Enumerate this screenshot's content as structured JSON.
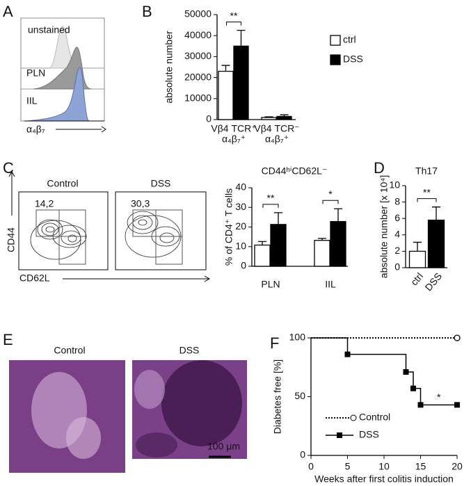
{
  "panels": {
    "A": {
      "letter": "A",
      "labels": [
        "unstained",
        "PLN",
        "IIL"
      ],
      "axis_label": "α₄β₇"
    },
    "B": {
      "letter": "B"
    },
    "C": {
      "letter": "C",
      "groups": [
        "Control",
        "DSS"
      ],
      "gate_values": [
        "14,2",
        "30,3"
      ],
      "y_label": "CD44",
      "x_label": "CD62L"
    },
    "D": {
      "letter": "D"
    },
    "E": {
      "letter": "E",
      "groups": [
        "Control",
        "DSS"
      ],
      "scale_bar": "100 μm"
    },
    "F": {
      "letter": "F"
    }
  },
  "chart_data": [
    {
      "type": "bar",
      "ylabel": "absolute number",
      "categories": [
        [
          "Vβ4 TCR⁺",
          "α₄β₇⁺"
        ],
        [
          "Vβ4 TCR⁻",
          "α₄β₇⁺"
        ]
      ],
      "series": [
        {
          "name": "ctrl",
          "color": "#ffffff",
          "values": [
            23000,
            1000
          ],
          "errors": [
            2800,
            300
          ]
        },
        {
          "name": "DSS",
          "color": "#000000",
          "values": [
            35000,
            1500
          ],
          "errors": [
            7500,
            800
          ]
        }
      ],
      "significance": [
        "**",
        null
      ],
      "ylim": [
        0,
        50000
      ],
      "yticks": [
        0,
        10000,
        20000,
        30000,
        40000,
        50000
      ]
    },
    {
      "type": "bar",
      "title": "CD44ʰⁱCD62L⁻",
      "ylabel": "% of CD4⁺ T cells",
      "categories": [
        "PLN",
        "IIL"
      ],
      "series": [
        {
          "color": "#ffffff",
          "values": [
            10.8,
            13.2
          ],
          "errors": [
            1.8,
            1.0
          ]
        },
        {
          "color": "#000000",
          "values": [
            21.3,
            22.8
          ],
          "errors": [
            6.0,
            6.5
          ]
        }
      ],
      "significance": [
        "**",
        "*"
      ],
      "ylim": [
        0,
        40
      ],
      "yticks": [
        0,
        10,
        20,
        30,
        40
      ]
    },
    {
      "type": "bar",
      "title": "Th17",
      "ylabel": "absolute number [x 10⁴]",
      "categories": [
        "ctrl",
        "DSS"
      ],
      "values": [
        2.0,
        5.8
      ],
      "errors": [
        1.1,
        1.6
      ],
      "colors": [
        "#ffffff",
        "#000000"
      ],
      "significance": "**",
      "ylim": [
        0,
        10
      ],
      "yticks": [
        0,
        2,
        4,
        6,
        8,
        10
      ]
    },
    {
      "type": "line",
      "step": true,
      "xlabel": "Weeks after first colitis induction",
      "ylabel": "Diabetes free [%]",
      "series": [
        {
          "name": "Control",
          "color": "#000000",
          "linestyle": "dotted",
          "marker": "open-circle",
          "x": [
            0,
            20
          ],
          "values": [
            100,
            100
          ]
        },
        {
          "name": "DSS",
          "color": "#000000",
          "linestyle": "solid",
          "marker": "square",
          "x": [
            0,
            5,
            13,
            14,
            15,
            20
          ],
          "values": [
            100,
            86,
            71,
            57,
            43,
            43
          ]
        }
      ],
      "annotation": "*",
      "xlim": [
        0,
        20
      ],
      "xticks": [
        0,
        5,
        10,
        15,
        20
      ],
      "ylim": [
        0,
        100
      ],
      "yticks": [
        0,
        50,
        100
      ]
    }
  ]
}
